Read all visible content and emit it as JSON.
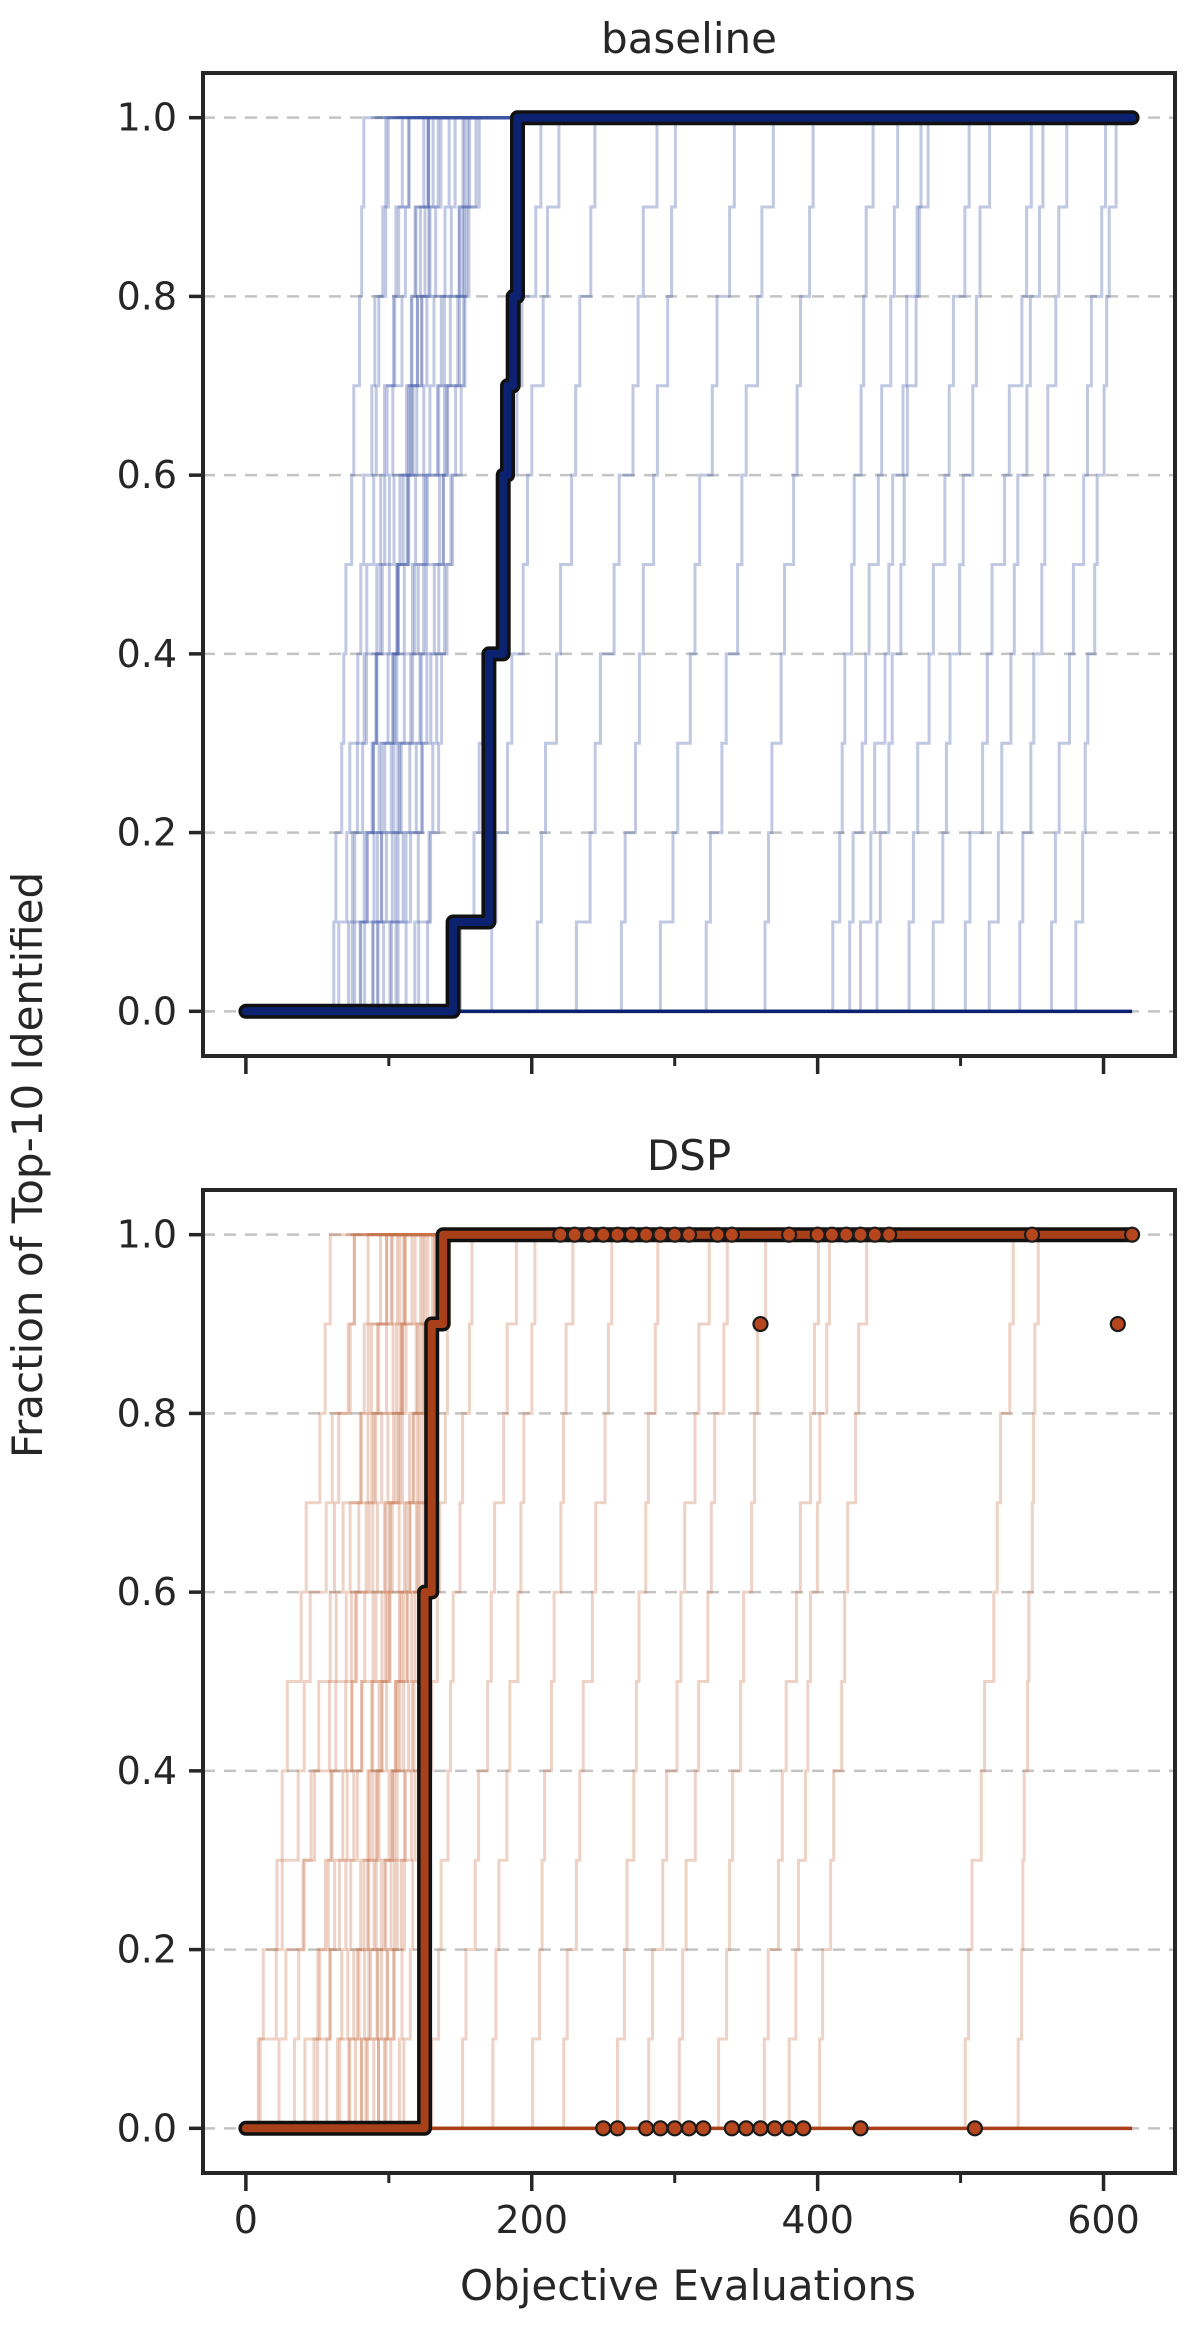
{
  "figure": {
    "shared_ylabel": "Fraction of Top-10 Identified",
    "shared_xlabel": "Objective Evaluations"
  },
  "chart_data": [
    {
      "type": "line",
      "title": "baseline",
      "xlim": [
        -30,
        650
      ],
      "ylim": [
        -0.05,
        1.05
      ],
      "xticks": [
        0,
        200,
        400,
        600
      ],
      "xtick_labels": [],
      "yticks": [
        0.0,
        0.2,
        0.4,
        0.6,
        0.8,
        1.0
      ],
      "ytick_labels": [
        "0.0",
        "0.2",
        "0.4",
        "0.6",
        "0.8",
        "1.0"
      ],
      "grid": "horizontal-dashed",
      "colors": {
        "runs": "#3a55a4",
        "median": "#0c2270"
      },
      "median_run": [
        [
          0,
          0.0
        ],
        [
          145,
          0.1
        ],
        [
          170,
          0.4
        ],
        [
          180,
          0.6
        ],
        [
          183,
          0.7
        ],
        [
          187,
          0.8
        ],
        [
          190,
          1.0
        ],
        [
          620,
          1.0
        ]
      ],
      "run_start_x": [
        60,
        65,
        70,
        72,
        75,
        78,
        80,
        82,
        85,
        88,
        90,
        92,
        95,
        98,
        100,
        103,
        105,
        110,
        115,
        120,
        125,
        150,
        170,
        200,
        230,
        260,
        290,
        320,
        360,
        410,
        420,
        430,
        440,
        460,
        480,
        500,
        520,
        540,
        560,
        580
      ],
      "run_duration": [
        25,
        35,
        45,
        30,
        55,
        40,
        60,
        28,
        50,
        38,
        42,
        65,
        33,
        48,
        36,
        58,
        44,
        52,
        40,
        45,
        35,
        60,
        50,
        48,
        60,
        45,
        55,
        50,
        40,
        30,
        40,
        45,
        38,
        50,
        42,
        55,
        40,
        35,
        45,
        30
      ],
      "flat_run_x_end": 620
    },
    {
      "type": "line",
      "title": "DSP",
      "xlim": [
        -30,
        650
      ],
      "ylim": [
        -0.05,
        1.05
      ],
      "xticks": [
        0,
        200,
        400,
        600
      ],
      "xtick_labels": [
        "0",
        "200",
        "400",
        "600"
      ],
      "yticks": [
        0.0,
        0.2,
        0.4,
        0.6,
        0.8,
        1.0
      ],
      "ytick_labels": [
        "0.0",
        "0.2",
        "0.4",
        "0.6",
        "0.8",
        "1.0"
      ],
      "grid": "horizontal-dashed",
      "colors": {
        "runs": "#c8734c",
        "median": "#a8401a"
      },
      "median_run": [
        [
          0,
          0.0
        ],
        [
          120,
          0.0
        ],
        [
          125,
          0.6
        ],
        [
          130,
          0.9
        ],
        [
          138,
          1.0
        ],
        [
          620,
          1.0
        ]
      ],
      "run_start_x": [
        5,
        10,
        20,
        30,
        40,
        45,
        50,
        55,
        60,
        65,
        70,
        72,
        75,
        78,
        80,
        82,
        85,
        88,
        90,
        92,
        95,
        98,
        100,
        105,
        110,
        120,
        130,
        150,
        170,
        200,
        220,
        260,
        280,
        300,
        330,
        360,
        380,
        400,
        500,
        540
      ],
      "run_duration": [
        60,
        70,
        80,
        50,
        65,
        45,
        55,
        40,
        50,
        35,
        45,
        38,
        42,
        36,
        40,
        33,
        45,
        38,
        35,
        40,
        32,
        36,
        34,
        30,
        28,
        25,
        30,
        40,
        35,
        30,
        40,
        30,
        45,
        40,
        35,
        45,
        30,
        35,
        40,
        15
      ],
      "markers_top": [
        [
          220,
          1.0
        ],
        [
          230,
          1.0
        ],
        [
          240,
          1.0
        ],
        [
          250,
          1.0
        ],
        [
          260,
          1.0
        ],
        [
          270,
          1.0
        ],
        [
          280,
          1.0
        ],
        [
          290,
          1.0
        ],
        [
          300,
          1.0
        ],
        [
          310,
          1.0
        ],
        [
          330,
          1.0
        ],
        [
          340,
          1.0
        ],
        [
          380,
          1.0
        ],
        [
          400,
          1.0
        ],
        [
          410,
          1.0
        ],
        [
          420,
          1.0
        ],
        [
          430,
          1.0
        ],
        [
          440,
          1.0
        ],
        [
          450,
          1.0
        ],
        [
          550,
          1.0
        ],
        [
          620,
          1.0
        ],
        [
          360,
          0.9
        ],
        [
          610,
          0.9
        ]
      ],
      "markers_bottom": [
        [
          250,
          0.0
        ],
        [
          260,
          0.0
        ],
        [
          280,
          0.0
        ],
        [
          290,
          0.0
        ],
        [
          300,
          0.0
        ],
        [
          310,
          0.0
        ],
        [
          320,
          0.0
        ],
        [
          340,
          0.0
        ],
        [
          350,
          0.0
        ],
        [
          360,
          0.0
        ],
        [
          370,
          0.0
        ],
        [
          380,
          0.0
        ],
        [
          390,
          0.0
        ],
        [
          430,
          0.0
        ],
        [
          510,
          0.0
        ]
      ],
      "marker_color": "#b5461d"
    }
  ]
}
